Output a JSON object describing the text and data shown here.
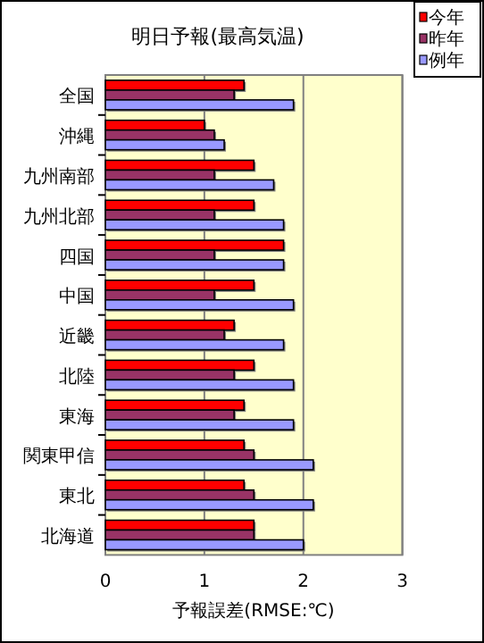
{
  "chart_data": {
    "type": "bar",
    "orientation": "horizontal",
    "title": "明日予報(最高気温)",
    "xlabel": "予報誤差(RMSE:℃)",
    "categories": [
      "全国",
      "沖縄",
      "九州南部",
      "九州北部",
      "四国",
      "中国",
      "近畿",
      "北陸",
      "東海",
      "関東甲信",
      "東北",
      "北海道"
    ],
    "series": [
      {
        "name": "今年",
        "color": "#ff0000",
        "values": [
          1.4,
          1.0,
          1.5,
          1.5,
          1.8,
          1.5,
          1.3,
          1.5,
          1.4,
          1.4,
          1.4,
          1.5
        ]
      },
      {
        "name": "昨年",
        "color": "#993366",
        "values": [
          1.3,
          1.1,
          1.1,
          1.1,
          1.1,
          1.1,
          1.2,
          1.3,
          1.3,
          1.5,
          1.5,
          1.5
        ]
      },
      {
        "name": "例年",
        "color": "#9999ff",
        "values": [
          1.9,
          1.2,
          1.7,
          1.8,
          1.8,
          1.9,
          1.8,
          1.9,
          1.9,
          2.1,
          2.1,
          2.0
        ]
      }
    ],
    "xlim": [
      0,
      3
    ],
    "xticks": [
      0,
      1,
      2,
      3
    ],
    "grid": "x",
    "legend": "top right"
  }
}
